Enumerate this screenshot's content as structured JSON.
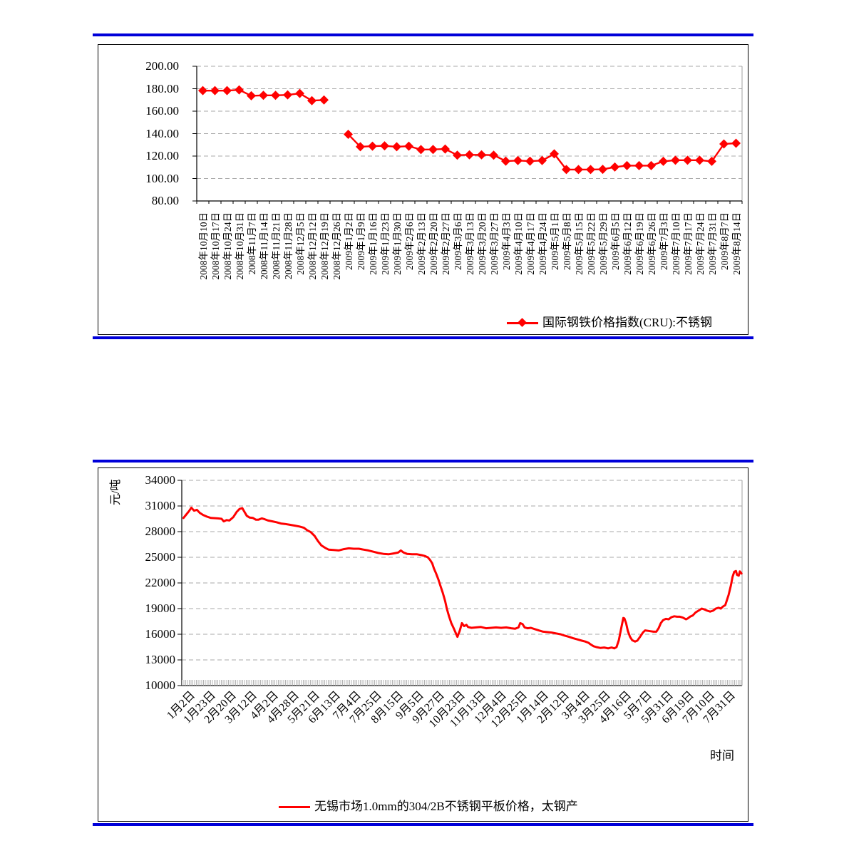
{
  "colors": {
    "rule_blue": "#0000d9",
    "series_red": "#ff0000",
    "grid_gray": "#aaaaaa",
    "axis_black": "#000000",
    "plot_border_gray": "#a0a0a0",
    "dense_tick_gray": "#b3b3b3"
  },
  "chart_data": [
    {
      "type": "line",
      "legend": "国际钢铁价格指数(CRU):不锈钢",
      "marker": "diamond",
      "ylim": [
        80,
        200
      ],
      "grid": "dashed-horizontal",
      "legend_position": "bottom-right-inside",
      "y_ticks": [
        "200.00",
        "180.00",
        "160.00",
        "140.00",
        "120.00",
        "100.00",
        "80.00"
      ],
      "y_tick_values": [
        200,
        180,
        160,
        140,
        120,
        100,
        80
      ],
      "categories": [
        "2008年10月10日",
        "2008年10月17日",
        "2008年10月24日",
        "2008年10月31日",
        "2008年11月7日",
        "2008年11月14日",
        "2008年11月21日",
        "2008年11月28日",
        "2008年12月5日",
        "2008年12月12日",
        "2008年12月19日",
        "2008年12月26日",
        "2009年1月2日",
        "2009年1月9日",
        "2009年1月16日",
        "2009年1月23日",
        "2009年1月30日",
        "2009年2月6日",
        "2009年2月13日",
        "2009年2月20日",
        "2009年2月27日",
        "2009年3月6日",
        "2009年3月13日",
        "2009年3月20日",
        "2009年3月27日",
        "2009年4月3日",
        "2009年4月10日",
        "2009年4月17日",
        "2009年4月24日",
        "2009年5月1日",
        "2009年5月8日",
        "2009年5月15日",
        "2009年5月22日",
        "2009年5月29日",
        "2009年6月5日",
        "2009年6月12日",
        "2009年6月19日",
        "2009年6月26日",
        "2009年7月3日",
        "2009年7月10日",
        "2009年7月17日",
        "2009年7月24日",
        "2009年7月31日",
        "2009年8月7日",
        "2009年8月14日"
      ],
      "values": [
        178.3,
        178.3,
        178.3,
        179.0,
        173.7,
        174.1,
        174.1,
        174.5,
        175.8,
        169.4,
        170.0,
        null,
        139.4,
        128.3,
        128.8,
        129.1,
        128.3,
        128.8,
        125.8,
        125.9,
        126.3,
        120.8,
        121.1,
        121.1,
        120.8,
        115.5,
        116.0,
        115.5,
        116.0,
        122.0,
        108.0,
        108.0,
        108.0,
        108.2,
        110.2,
        111.5,
        111.5,
        111.5,
        115.3,
        116.3,
        116.3,
        116.3,
        115.3,
        130.8,
        131.4
      ]
    },
    {
      "type": "line",
      "legend": "无锡市场1.0mm的304/2B不锈钢平板价格，太钢产",
      "xlabel": "时间",
      "ylabel": "元/吨",
      "ylim": [
        10000,
        34000
      ],
      "grid": "dashed-horizontal",
      "legend_position": "bottom-center-inside",
      "minor_x_ticks": "dense-daily",
      "y_ticks": [
        "34000",
        "31000",
        "28000",
        "25000",
        "22000",
        "19000",
        "16000",
        "13000",
        "10000"
      ],
      "y_tick_values": [
        34000,
        31000,
        28000,
        25000,
        22000,
        19000,
        16000,
        13000,
        10000
      ],
      "x_tick_labels": [
        "1月2日",
        "1月23日",
        "2月20日",
        "3月12日",
        "4月2日",
        "4月28日",
        "5月21日",
        "6月13日",
        "7月4日",
        "7月25日",
        "8月15日",
        "9月5日",
        "9月27日",
        "10月23日",
        "11月13日",
        "12月4日",
        "12月25日",
        "1月14日",
        "2月12日",
        "3月4日",
        "3月25日",
        "4月16日",
        "5月7日",
        "5月31日",
        "6月19日",
        "7月10日",
        "7月31日"
      ],
      "series_points": [
        [
          0.003,
          29600
        ],
        [
          0.008,
          30000
        ],
        [
          0.013,
          30400
        ],
        [
          0.017,
          30800
        ],
        [
          0.022,
          30450
        ],
        [
          0.027,
          30550
        ],
        [
          0.032,
          30200
        ],
        [
          0.038,
          29950
        ],
        [
          0.045,
          29750
        ],
        [
          0.052,
          29600
        ],
        [
          0.064,
          29550
        ],
        [
          0.071,
          29500
        ],
        [
          0.075,
          29200
        ],
        [
          0.08,
          29350
        ],
        [
          0.085,
          29300
        ],
        [
          0.092,
          29700
        ],
        [
          0.098,
          30300
        ],
        [
          0.103,
          30650
        ],
        [
          0.108,
          30750
        ],
        [
          0.112,
          30300
        ],
        [
          0.116,
          29850
        ],
        [
          0.121,
          29650
        ],
        [
          0.127,
          29600
        ],
        [
          0.132,
          29400
        ],
        [
          0.137,
          29400
        ],
        [
          0.143,
          29550
        ],
        [
          0.148,
          29450
        ],
        [
          0.154,
          29300
        ],
        [
          0.162,
          29200
        ],
        [
          0.169,
          29100
        ],
        [
          0.177,
          28950
        ],
        [
          0.184,
          28900
        ],
        [
          0.193,
          28800
        ],
        [
          0.202,
          28700
        ],
        [
          0.21,
          28600
        ],
        [
          0.218,
          28450
        ],
        [
          0.224,
          28150
        ],
        [
          0.23,
          27950
        ],
        [
          0.237,
          27500
        ],
        [
          0.243,
          26900
        ],
        [
          0.249,
          26400
        ],
        [
          0.256,
          26100
        ],
        [
          0.262,
          25900
        ],
        [
          0.271,
          25850
        ],
        [
          0.28,
          25800
        ],
        [
          0.289,
          25950
        ],
        [
          0.298,
          26050
        ],
        [
          0.307,
          26000
        ],
        [
          0.316,
          26000
        ],
        [
          0.324,
          25900
        ],
        [
          0.333,
          25800
        ],
        [
          0.342,
          25650
        ],
        [
          0.351,
          25500
        ],
        [
          0.36,
          25400
        ],
        [
          0.369,
          25350
        ],
        [
          0.378,
          25450
        ],
        [
          0.386,
          25550
        ],
        [
          0.391,
          25800
        ],
        [
          0.396,
          25550
        ],
        [
          0.402,
          25400
        ],
        [
          0.411,
          25350
        ],
        [
          0.42,
          25350
        ],
        [
          0.428,
          25250
        ],
        [
          0.434,
          25150
        ],
        [
          0.439,
          25000
        ],
        [
          0.443,
          24700
        ],
        [
          0.447,
          24300
        ],
        [
          0.45,
          23700
        ],
        [
          0.454,
          23100
        ],
        [
          0.458,
          22400
        ],
        [
          0.462,
          21600
        ],
        [
          0.466,
          20800
        ],
        [
          0.47,
          19900
        ],
        [
          0.473,
          19000
        ],
        [
          0.477,
          18100
        ],
        [
          0.481,
          17300
        ],
        [
          0.486,
          16600
        ],
        [
          0.49,
          16000
        ],
        [
          0.492,
          15700
        ],
        [
          0.496,
          16400
        ],
        [
          0.5,
          17300
        ],
        [
          0.504,
          16950
        ],
        [
          0.508,
          17100
        ],
        [
          0.511,
          16850
        ],
        [
          0.517,
          16750
        ],
        [
          0.525,
          16800
        ],
        [
          0.534,
          16850
        ],
        [
          0.543,
          16700
        ],
        [
          0.552,
          16750
        ],
        [
          0.561,
          16800
        ],
        [
          0.57,
          16750
        ],
        [
          0.579,
          16800
        ],
        [
          0.588,
          16700
        ],
        [
          0.595,
          16650
        ],
        [
          0.601,
          16800
        ],
        [
          0.604,
          17300
        ],
        [
          0.608,
          17200
        ],
        [
          0.612,
          16800
        ],
        [
          0.617,
          16700
        ],
        [
          0.623,
          16750
        ],
        [
          0.63,
          16600
        ],
        [
          0.637,
          16450
        ],
        [
          0.645,
          16300
        ],
        [
          0.653,
          16250
        ],
        [
          0.66,
          16200
        ],
        [
          0.668,
          16100
        ],
        [
          0.676,
          16000
        ],
        [
          0.683,
          15850
        ],
        [
          0.691,
          15700
        ],
        [
          0.698,
          15550
        ],
        [
          0.706,
          15400
        ],
        [
          0.714,
          15250
        ],
        [
          0.72,
          15150
        ],
        [
          0.726,
          15000
        ],
        [
          0.73,
          14800
        ],
        [
          0.735,
          14600
        ],
        [
          0.74,
          14500
        ],
        [
          0.747,
          14400
        ],
        [
          0.754,
          14450
        ],
        [
          0.761,
          14350
        ],
        [
          0.767,
          14450
        ],
        [
          0.772,
          14350
        ],
        [
          0.776,
          14500
        ],
        [
          0.78,
          15300
        ],
        [
          0.784,
          16600
        ],
        [
          0.788,
          17900
        ],
        [
          0.79,
          17850
        ],
        [
          0.793,
          17300
        ],
        [
          0.796,
          16400
        ],
        [
          0.8,
          15700
        ],
        [
          0.804,
          15300
        ],
        [
          0.809,
          15150
        ],
        [
          0.813,
          15250
        ],
        [
          0.818,
          15700
        ],
        [
          0.823,
          16200
        ],
        [
          0.827,
          16450
        ],
        [
          0.832,
          16400
        ],
        [
          0.837,
          16350
        ],
        [
          0.842,
          16300
        ],
        [
          0.847,
          16300
        ],
        [
          0.851,
          16700
        ],
        [
          0.855,
          17300
        ],
        [
          0.859,
          17650
        ],
        [
          0.864,
          17800
        ],
        [
          0.869,
          17750
        ],
        [
          0.874,
          18000
        ],
        [
          0.879,
          18100
        ],
        [
          0.884,
          18050
        ],
        [
          0.889,
          18050
        ],
        [
          0.894,
          17950
        ],
        [
          0.9,
          17750
        ],
        [
          0.903,
          17850
        ],
        [
          0.907,
          18050
        ],
        [
          0.912,
          18200
        ],
        [
          0.917,
          18550
        ],
        [
          0.922,
          18750
        ],
        [
          0.928,
          19000
        ],
        [
          0.933,
          18900
        ],
        [
          0.938,
          18750
        ],
        [
          0.943,
          18650
        ],
        [
          0.948,
          18750
        ],
        [
          0.953,
          19000
        ],
        [
          0.958,
          19100
        ],
        [
          0.962,
          19000
        ],
        [
          0.966,
          19250
        ],
        [
          0.97,
          19400
        ],
        [
          0.972,
          19800
        ],
        [
          0.976,
          20600
        ],
        [
          0.98,
          21700
        ],
        [
          0.983,
          22700
        ],
        [
          0.986,
          23300
        ],
        [
          0.989,
          23400
        ],
        [
          0.991,
          22950
        ],
        [
          0.994,
          22850
        ],
        [
          0.996,
          23350
        ],
        [
          0.999,
          23100
        ]
      ]
    }
  ]
}
